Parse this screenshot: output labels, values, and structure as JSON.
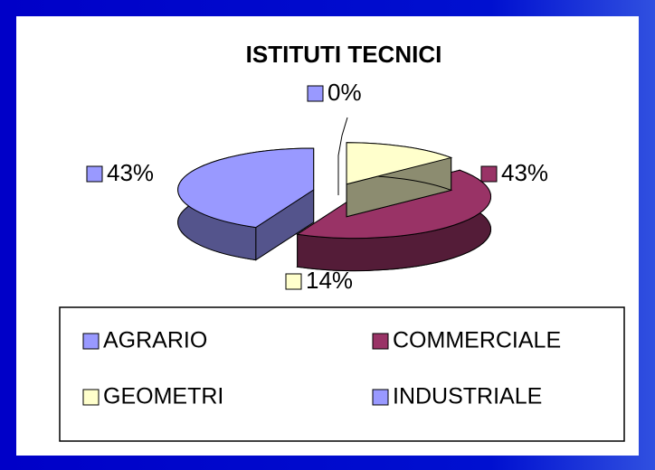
{
  "chart_data": {
    "type": "pie",
    "title": "ISTITUTI TECNICI",
    "categories": [
      "AGRARIO",
      "COMMERCIALE",
      "GEOMETRI",
      "INDUSTRIALE"
    ],
    "values": [
      43,
      43,
      14,
      0
    ],
    "value_labels": [
      "43%",
      "43%",
      "14%",
      "0%"
    ],
    "colors": [
      "#9999ff",
      "#993366",
      "#ffffcc",
      "#9999ff"
    ],
    "legend": "bottom"
  }
}
